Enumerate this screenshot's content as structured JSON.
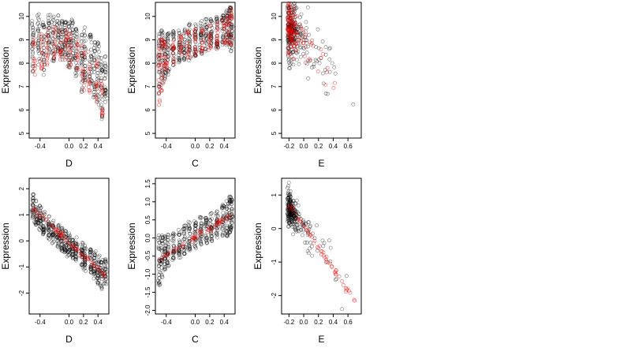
{
  "colors": {
    "black_points": "#000000",
    "red_points": "#e60000",
    "frame": "#000000"
  },
  "chart_data": [
    {
      "type": "scatter",
      "xlabel": "D",
      "ylabel": "Expression",
      "xlim": [
        -0.55,
        0.55
      ],
      "ylim": [
        4.8,
        10.6
      ],
      "xticks": [
        -0.4,
        0.0,
        0.2,
        0.4
      ],
      "xticklabels": [
        "-0.4",
        "0.0",
        "0.2",
        "0.4"
      ],
      "yticks": [
        5,
        6,
        7,
        8,
        9,
        10
      ],
      "yticklabels": [
        "5",
        "6",
        "7",
        "8",
        "9",
        "10"
      ],
      "series": [
        {
          "color": "black",
          "style": "vertical-strips",
          "columns": [
            -0.5,
            -0.42,
            -0.35,
            -0.28,
            -0.22,
            -0.15,
            -0.1,
            -0.05,
            0.0,
            0.05,
            0.1,
            0.18,
            0.22,
            0.3,
            0.35,
            0.4,
            0.45,
            0.5
          ],
          "center": [
            8.8,
            9.0,
            8.6,
            9.2,
            9.0,
            9.3,
            9.0,
            8.9,
            8.8,
            9.0,
            8.5,
            8.0,
            8.4,
            8.2,
            7.8,
            7.5,
            7.0,
            7.2
          ],
          "spread": [
            1.2,
            1.1,
            1.2,
            0.9,
            1.0,
            0.8,
            1.0,
            0.9,
            1.0,
            0.9,
            1.1,
            1.3,
            1.2,
            1.1,
            1.3,
            1.4,
            1.5,
            1.1
          ]
        },
        {
          "color": "red",
          "style": "vertical-strips",
          "columns": [
            -0.48,
            -0.38,
            -0.3,
            -0.2,
            -0.12,
            -0.04,
            0.02,
            0.12,
            0.2,
            0.28,
            0.38,
            0.46
          ],
          "center": [
            8.3,
            8.5,
            8.7,
            8.9,
            8.8,
            8.8,
            8.6,
            8.2,
            7.8,
            7.6,
            7.2,
            6.6
          ],
          "spread": [
            0.8,
            0.8,
            0.8,
            0.7,
            0.7,
            0.7,
            0.8,
            0.9,
            1.0,
            0.9,
            0.9,
            1.0
          ]
        }
      ]
    },
    {
      "type": "scatter",
      "xlabel": "C",
      "ylabel": "Expression",
      "xlim": [
        -0.55,
        0.55
      ],
      "ylim": [
        4.8,
        10.6
      ],
      "xticks": [
        -0.4,
        0.0,
        0.2,
        0.4
      ],
      "xticklabels": [
        "-0.4",
        "0.0",
        "0.2",
        "0.4"
      ],
      "yticks": [
        5,
        6,
        7,
        8,
        9,
        10
      ],
      "yticklabels": [
        "5",
        "6",
        "7",
        "8",
        "9",
        "10"
      ],
      "series": [
        {
          "color": "black",
          "style": "vertical-strips",
          "columns": [
            -0.5,
            -0.46,
            -0.42,
            -0.38,
            -0.3,
            -0.22,
            -0.15,
            -0.08,
            0.0,
            0.08,
            0.15,
            0.22,
            0.3,
            0.38,
            0.44,
            0.48,
            0.5
          ],
          "center": [
            8.0,
            8.2,
            8.3,
            8.4,
            8.6,
            8.7,
            8.8,
            8.9,
            9.0,
            9.1,
            9.2,
            9.3,
            9.3,
            9.4,
            9.5,
            9.5,
            9.4
          ],
          "spread": [
            1.3,
            1.2,
            1.0,
            0.9,
            0.8,
            0.7,
            0.7,
            0.8,
            0.7,
            0.7,
            0.7,
            0.6,
            0.7,
            0.7,
            0.8,
            0.9,
            1.0
          ]
        },
        {
          "color": "red",
          "style": "vertical-strips",
          "columns": [
            -0.5,
            -0.47,
            -0.44,
            -0.4,
            -0.3,
            -0.2,
            -0.1,
            0.0,
            0.1,
            0.2,
            0.3,
            0.4,
            0.46,
            0.5
          ],
          "center": [
            7.6,
            7.9,
            8.1,
            8.3,
            8.5,
            8.6,
            8.8,
            8.9,
            9.0,
            9.1,
            9.2,
            9.3,
            9.5,
            9.6
          ],
          "spread": [
            1.4,
            1.2,
            1.0,
            0.7,
            0.6,
            0.6,
            0.6,
            0.6,
            0.6,
            0.6,
            0.6,
            0.6,
            0.7,
            0.8
          ]
        }
      ]
    },
    {
      "type": "scatter",
      "xlabel": "E",
      "ylabel": "Expression",
      "xlim": [
        -0.3,
        0.78
      ],
      "ylim": [
        4.8,
        10.6
      ],
      "xticks": [
        -0.2,
        0.0,
        0.2,
        0.4,
        0.6
      ],
      "xticklabels": [
        "-0.2",
        "0.0",
        "0.2",
        "0.4",
        "0.6"
      ],
      "yticks": [
        5,
        6,
        7,
        8,
        9,
        10
      ],
      "yticklabels": [
        "5",
        "6",
        "7",
        "8",
        "9",
        "10"
      ],
      "series": [
        {
          "color": "black",
          "style": "cluster-decay",
          "x_center": -0.15,
          "x_spread": 0.22,
          "y_at_left": 9.4,
          "slope": -3.2,
          "noise": 1.0
        },
        {
          "color": "red",
          "style": "cluster-decay",
          "x_center": -0.12,
          "x_spread": 0.2,
          "y_at_left": 9.5,
          "slope": -3.6,
          "noise": 0.9
        }
      ]
    },
    {
      "type": "scatter",
      "xlabel": "D",
      "ylabel": "Expression",
      "xlim": [
        -0.55,
        0.55
      ],
      "ylim": [
        -2.8,
        2.4
      ],
      "xticks": [
        -0.4,
        0.0,
        0.2,
        0.4
      ],
      "xticklabels": [
        "-0.4",
        "0.0",
        "0.2",
        "0.4"
      ],
      "yticks": [
        -2,
        -1,
        0,
        1,
        2
      ],
      "yticklabels": [
        "-2",
        "-1",
        "0",
        "1",
        "2"
      ],
      "series": [
        {
          "color": "black",
          "style": "vertical-strips",
          "columns": [
            -0.5,
            -0.45,
            -0.4,
            -0.35,
            -0.28,
            -0.22,
            -0.15,
            -0.1,
            -0.05,
            0.0,
            0.05,
            0.1,
            0.18,
            0.22,
            0.3,
            0.35,
            0.4,
            0.45,
            0.5
          ],
          "center": [
            1.3,
            1.1,
            0.9,
            0.7,
            0.5,
            0.35,
            0.2,
            0.05,
            -0.05,
            -0.15,
            -0.25,
            -0.35,
            -0.55,
            -0.65,
            -0.8,
            -0.95,
            -1.1,
            -1.3,
            -1.2
          ],
          "spread": [
            0.5,
            0.5,
            0.5,
            0.45,
            0.45,
            0.45,
            0.45,
            0.45,
            0.45,
            0.45,
            0.45,
            0.5,
            0.5,
            0.5,
            0.5,
            0.55,
            0.55,
            0.6,
            0.5
          ]
        },
        {
          "color": "red",
          "style": "line-band",
          "x0": -0.5,
          "x1": 0.5,
          "y0": 1.25,
          "y1": -1.35,
          "width": 0.06,
          "n": 70
        }
      ]
    },
    {
      "type": "scatter",
      "xlabel": "C",
      "ylabel": "Expression",
      "xlim": [
        -0.55,
        0.55
      ],
      "ylim": [
        -2.1,
        1.65
      ],
      "xticks": [
        -0.4,
        0.0,
        0.2,
        0.4
      ],
      "xticklabels": [
        "-0.4",
        "0.0",
        "0.2",
        "0.4"
      ],
      "yticks": [
        -2.0,
        -1.5,
        -1.0,
        -0.5,
        0.0,
        0.5,
        1.0,
        1.5
      ],
      "yticklabels": [
        "-2.0",
        "-1.5",
        "-1.0",
        "-0.5",
        "0.0",
        "0.5",
        "1.0",
        "1.5"
      ],
      "series": [
        {
          "color": "black",
          "style": "vertical-strips",
          "columns": [
            -0.5,
            -0.46,
            -0.42,
            -0.38,
            -0.3,
            -0.22,
            -0.15,
            -0.08,
            0.0,
            0.08,
            0.15,
            0.22,
            0.3,
            0.38,
            0.44,
            0.48,
            0.5
          ],
          "center": [
            -0.6,
            -0.5,
            -0.4,
            -0.35,
            -0.25,
            -0.15,
            -0.05,
            0.05,
            0.1,
            0.2,
            0.25,
            0.3,
            0.4,
            0.5,
            0.55,
            0.6,
            0.7
          ],
          "spread": [
            0.7,
            0.6,
            0.5,
            0.45,
            0.4,
            0.4,
            0.4,
            0.4,
            0.4,
            0.4,
            0.4,
            0.4,
            0.4,
            0.45,
            0.5,
            0.55,
            0.5
          ]
        },
        {
          "color": "red",
          "style": "line-band",
          "x0": -0.5,
          "x1": 0.5,
          "y0": -0.6,
          "y1": 0.65,
          "width": 0.05,
          "n": 60
        }
      ]
    },
    {
      "type": "scatter",
      "xlabel": "E",
      "ylabel": "Expression",
      "xlim": [
        -0.3,
        0.78
      ],
      "ylim": [
        -2.55,
        1.5
      ],
      "xticks": [
        -0.2,
        0.0,
        0.2,
        0.4,
        0.6
      ],
      "xticklabels": [
        "-0.2",
        "0.0",
        "0.2",
        "0.4",
        "0.6"
      ],
      "yticks": [
        -2,
        -1,
        0,
        1
      ],
      "yticklabels": [
        "-2",
        "-1",
        "0",
        "1"
      ],
      "series": [
        {
          "color": "black",
          "style": "cluster-decay",
          "x_center": -0.14,
          "x_spread": 0.2,
          "y_at_left": 0.6,
          "slope": -3.3,
          "noise": 0.4
        },
        {
          "color": "red",
          "style": "line-band",
          "x0": -0.2,
          "x1": 0.72,
          "y0": 0.72,
          "y1": -2.25,
          "width": 0.05,
          "n": 55
        }
      ]
    }
  ]
}
